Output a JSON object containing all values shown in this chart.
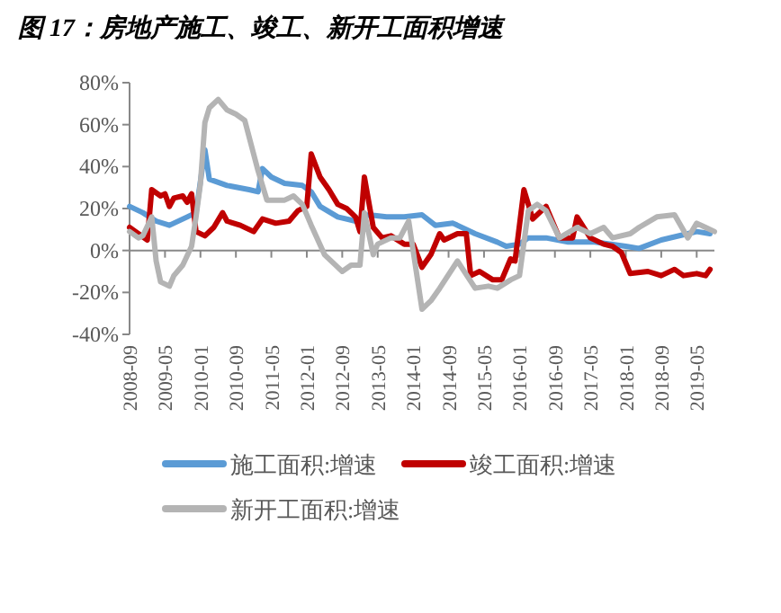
{
  "chart_data": {
    "type": "line",
    "title": "图 17：房地产施工、竣工、新开工面积增速",
    "xlim": [
      "2008-09",
      "2019-09"
    ],
    "xticks": [
      "2008-09",
      "2009-05",
      "2010-01",
      "2010-09",
      "2011-05",
      "2012-01",
      "2012-09",
      "2013-05",
      "2014-01",
      "2014-09",
      "2015-05",
      "2016-01",
      "2016-09",
      "2017-05",
      "2018-01",
      "2018-09",
      "2019-05"
    ],
    "ylim": [
      -40,
      80
    ],
    "yticks": [
      {
        "value": 80,
        "label": "80%"
      },
      {
        "value": 60,
        "label": "60%"
      },
      {
        "value": 40,
        "label": "40%"
      },
      {
        "value": 20,
        "label": "20%"
      },
      {
        "value": 0,
        "label": "0%"
      },
      {
        "value": -20,
        "label": "-20%"
      },
      {
        "value": -40,
        "label": "-40%"
      }
    ],
    "legend": "bottom",
    "series": [
      {
        "name": "施工面积:增速",
        "color": "#5b9bd5",
        "x": [
          "2008-09",
          "2008-12",
          "2009-03",
          "2009-06",
          "2009-10",
          "2009-12",
          "2010-02",
          "2010-03",
          "2010-07",
          "2010-12",
          "2011-02",
          "2011-03",
          "2011-05",
          "2011-08",
          "2011-12",
          "2012-02",
          "2012-04",
          "2012-08",
          "2012-12",
          "2013-03",
          "2013-07",
          "2013-11",
          "2014-03",
          "2014-06",
          "2014-10",
          "2015-03",
          "2015-08",
          "2015-10",
          "2016-01",
          "2016-03",
          "2016-07",
          "2016-12",
          "2017-06",
          "2018-01",
          "2018-04",
          "2018-09",
          "2019-03",
          "2019-05",
          "2019-08"
        ],
        "values": [
          21,
          18,
          14,
          12,
          16,
          18,
          48,
          34,
          31,
          29,
          28,
          39,
          35,
          32,
          31,
          28,
          21,
          16,
          14,
          17,
          16,
          16,
          17,
          12,
          13,
          8,
          4,
          2,
          3,
          6,
          6,
          4,
          4,
          2,
          1,
          5,
          8,
          9,
          8
        ]
      },
      {
        "name": "竣工面积:增速",
        "color": "#c00000",
        "x": [
          "2008-09",
          "2008-11",
          "2009-01",
          "2009-02",
          "2009-04",
          "2009-05",
          "2009-06",
          "2009-07",
          "2009-09",
          "2009-10",
          "2009-11",
          "2009-12",
          "2010-02",
          "2010-04",
          "2010-06",
          "2010-07",
          "2010-10",
          "2011-01",
          "2011-03",
          "2011-06",
          "2011-09",
          "2011-11",
          "2012-01",
          "2012-02",
          "2012-04",
          "2012-06",
          "2012-08",
          "2012-10",
          "2012-12",
          "2013-01",
          "2013-02",
          "2013-04",
          "2013-06",
          "2013-08",
          "2013-11",
          "2014-01",
          "2014-03",
          "2014-05",
          "2014-07",
          "2014-08",
          "2014-11",
          "2015-01",
          "2015-02",
          "2015-04",
          "2015-07",
          "2015-09",
          "2015-11",
          "2015-12",
          "2016-02",
          "2016-04",
          "2016-07",
          "2016-10",
          "2017-01",
          "2017-02",
          "2017-05",
          "2017-08",
          "2017-10",
          "2017-12",
          "2018-02",
          "2018-06",
          "2018-09",
          "2018-12",
          "2019-02",
          "2019-05",
          "2019-07",
          "2019-08"
        ],
        "values": [
          11,
          8,
          5,
          29,
          26,
          27,
          21,
          25,
          26,
          23,
          27,
          9,
          7,
          11,
          18,
          14,
          12,
          9,
          15,
          13,
          14,
          19,
          21,
          46,
          35,
          29,
          22,
          20,
          16,
          9,
          35,
          11,
          6,
          7,
          3,
          3,
          -8,
          -2,
          8,
          5,
          8,
          8,
          -12,
          -10,
          -14,
          -14,
          -4,
          -5,
          29,
          15,
          21,
          6,
          6,
          16,
          6,
          3,
          2,
          -1,
          -11,
          -10,
          -12,
          -9,
          -12,
          -11,
          -12,
          -9
        ]
      },
      {
        "name": "新开工面积:增速",
        "color": "#b4b4b4",
        "x": [
          "2008-09",
          "2008-11",
          "2008-12",
          "2009-02",
          "2009-03",
          "2009-04",
          "2009-06",
          "2009-07",
          "2009-09",
          "2009-11",
          "2009-12",
          "2010-01",
          "2010-02",
          "2010-03",
          "2010-05",
          "2010-07",
          "2010-09",
          "2010-11",
          "2011-02",
          "2011-04",
          "2011-08",
          "2011-10",
          "2011-12",
          "2012-02",
          "2012-05",
          "2012-08",
          "2012-09",
          "2012-11",
          "2013-01",
          "2013-02",
          "2013-04",
          "2013-05",
          "2013-08",
          "2013-10",
          "2013-12",
          "2014-03",
          "2014-05",
          "2014-07",
          "2014-11",
          "2015-03",
          "2015-06",
          "2015-08",
          "2015-11",
          "2016-01",
          "2016-03",
          "2016-05",
          "2016-07",
          "2016-10",
          "2017-02",
          "2017-05",
          "2017-08",
          "2017-10",
          "2018-02",
          "2018-04",
          "2018-08",
          "2018-12",
          "2019-03",
          "2019-05",
          "2019-07",
          "2019-09"
        ],
        "values": [
          9,
          6,
          7,
          16,
          -5,
          -15,
          -17,
          -12,
          -7,
          2,
          16,
          32,
          61,
          68,
          72,
          67,
          65,
          62,
          38,
          24,
          24,
          26,
          22,
          12,
          -2,
          -8,
          -10,
          -7,
          -7,
          18,
          -2,
          3,
          6,
          6,
          14,
          -28,
          -24,
          -18,
          -5,
          -18,
          -17,
          -18,
          -14,
          -12,
          19,
          22,
          19,
          6,
          11,
          8,
          11,
          6,
          8,
          11,
          16,
          17,
          6,
          13,
          11,
          9
        ]
      }
    ]
  }
}
